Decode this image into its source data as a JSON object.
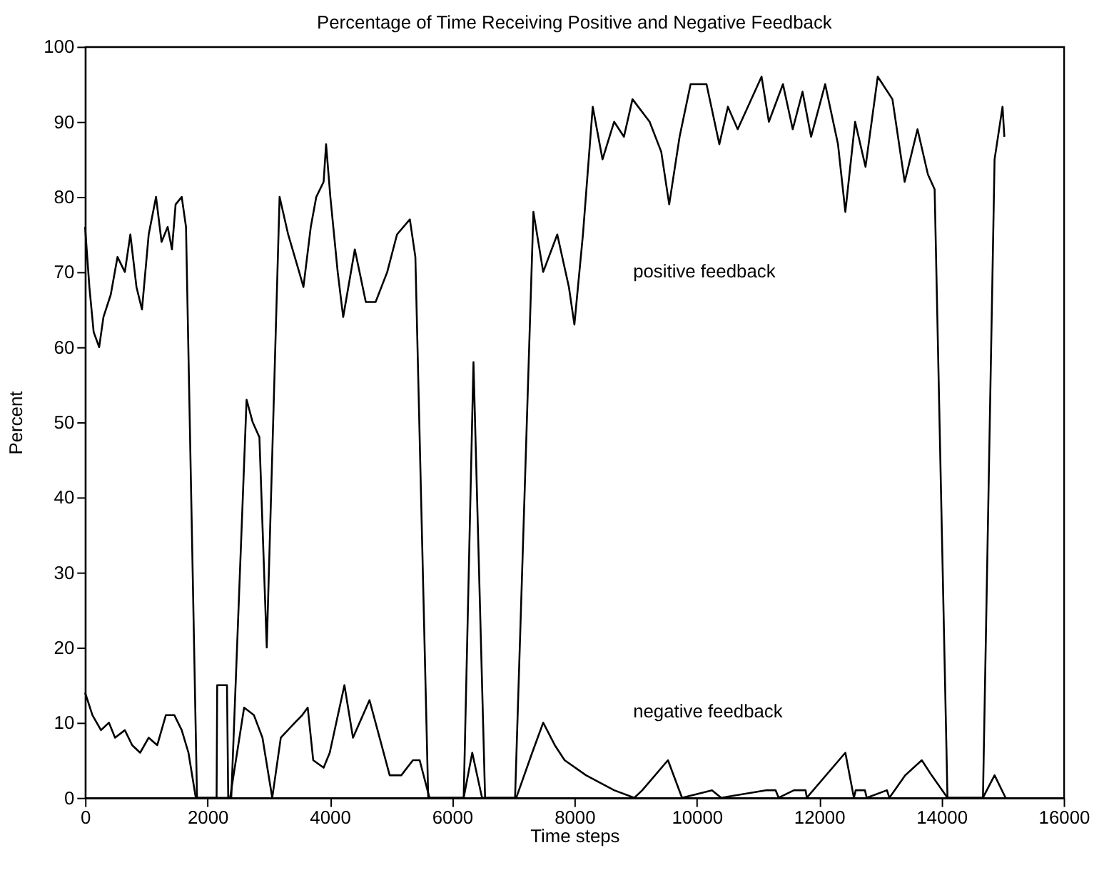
{
  "chart_data": {
    "type": "line",
    "title": "Percentage of Time Receiving Positive and Negative Feedback",
    "xlabel": "Time steps",
    "ylabel": "Percent",
    "xlim": [
      0,
      16000
    ],
    "xticks": [
      0,
      2000,
      4000,
      6000,
      8000,
      10000,
      12000,
      14000,
      16000
    ],
    "ylim": [
      0,
      100
    ],
    "yticks": [
      0,
      10,
      20,
      30,
      40,
      50,
      60,
      70,
      80,
      90,
      100
    ],
    "grid": false,
    "marker": "none",
    "line_style": "solid",
    "series": [
      {
        "name": "positive feedback",
        "color": "#000000",
        "x": [
          0,
          70,
          140,
          230,
          300,
          420,
          530,
          650,
          740,
          840,
          930,
          1040,
          1160,
          1250,
          1350,
          1420,
          1480,
          1580,
          1650,
          1830,
          2390,
          2640,
          2740,
          2850,
          2970,
          3180,
          3320,
          3500,
          3570,
          3690,
          3780,
          3900,
          3940,
          4010,
          4130,
          4220,
          4410,
          4590,
          4750,
          4940,
          5100,
          5310,
          5400,
          5610,
          6190,
          6350,
          6540,
          7030,
          7330,
          7490,
          7720,
          7910,
          8000,
          8140,
          8300,
          8460,
          8650,
          8810,
          8950,
          9230,
          9420,
          9550,
          9720,
          9900,
          10160,
          10370,
          10510,
          10670,
          11060,
          11180,
          11410,
          11570,
          11730,
          11870,
          12100,
          12310,
          12430,
          12590,
          12760,
          12960,
          13200,
          13400,
          13610,
          13780,
          13890,
          14100,
          14680,
          14870,
          15000,
          15030
        ],
        "values": [
          76,
          68,
          62,
          60,
          64,
          67,
          72,
          70,
          75,
          68,
          65,
          75,
          80,
          74,
          76,
          73,
          79,
          80,
          76,
          0,
          0,
          53,
          50,
          48,
          20,
          80,
          75,
          70,
          68,
          76,
          80,
          82,
          87,
          80,
          70,
          64,
          73,
          66,
          66,
          70,
          75,
          77,
          72,
          0,
          0,
          58,
          0,
          0,
          78,
          70,
          75,
          68,
          63,
          75,
          92,
          85,
          90,
          88,
          93,
          90,
          86,
          79,
          88,
          95,
          95,
          87,
          92,
          89,
          96,
          90,
          95,
          89,
          94,
          88,
          95,
          87,
          78,
          90,
          84,
          96,
          93,
          82,
          89,
          83,
          81,
          0,
          0,
          85,
          92,
          88
        ]
      },
      {
        "name": "negative feedback",
        "color": "#000000",
        "x": [
          0,
          120,
          260,
          390,
          490,
          650,
          770,
          900,
          1040,
          1180,
          1320,
          1460,
          1580,
          1690,
          1810,
          2150,
          2160,
          2320,
          2340,
          2370,
          2600,
          2760,
          2900,
          3060,
          3200,
          3430,
          3550,
          3640,
          3730,
          3900,
          4000,
          4240,
          4380,
          4650,
          4980,
          5170,
          5360,
          5470,
          5630,
          6190,
          6330,
          6490,
          7050,
          7310,
          7490,
          7680,
          7840,
          8190,
          8650,
          8980,
          9110,
          9530,
          9760,
          10250,
          10400,
          11130,
          11290,
          11340,
          11590,
          11780,
          11800,
          12430,
          12570,
          12600,
          12750,
          12780,
          13110,
          13150,
          13410,
          13680,
          13840,
          14100,
          14680,
          14870,
          15050
        ],
        "values": [
          14,
          11,
          9,
          10,
          8,
          9,
          7,
          6,
          8,
          7,
          11,
          11,
          9,
          6,
          0,
          0,
          15,
          15,
          0,
          0,
          12,
          11,
          8,
          0,
          8,
          10,
          11,
          12,
          5,
          4,
          6,
          15,
          8,
          13,
          3,
          3,
          5,
          5,
          0,
          0,
          6,
          0,
          0,
          6,
          10,
          7,
          5,
          3,
          1,
          0,
          1,
          5,
          0,
          1,
          0,
          1,
          1,
          0,
          1,
          1,
          0,
          6,
          0,
          1,
          1,
          0,
          1,
          0,
          3,
          5,
          3,
          0,
          0,
          3,
          0
        ]
      }
    ]
  }
}
